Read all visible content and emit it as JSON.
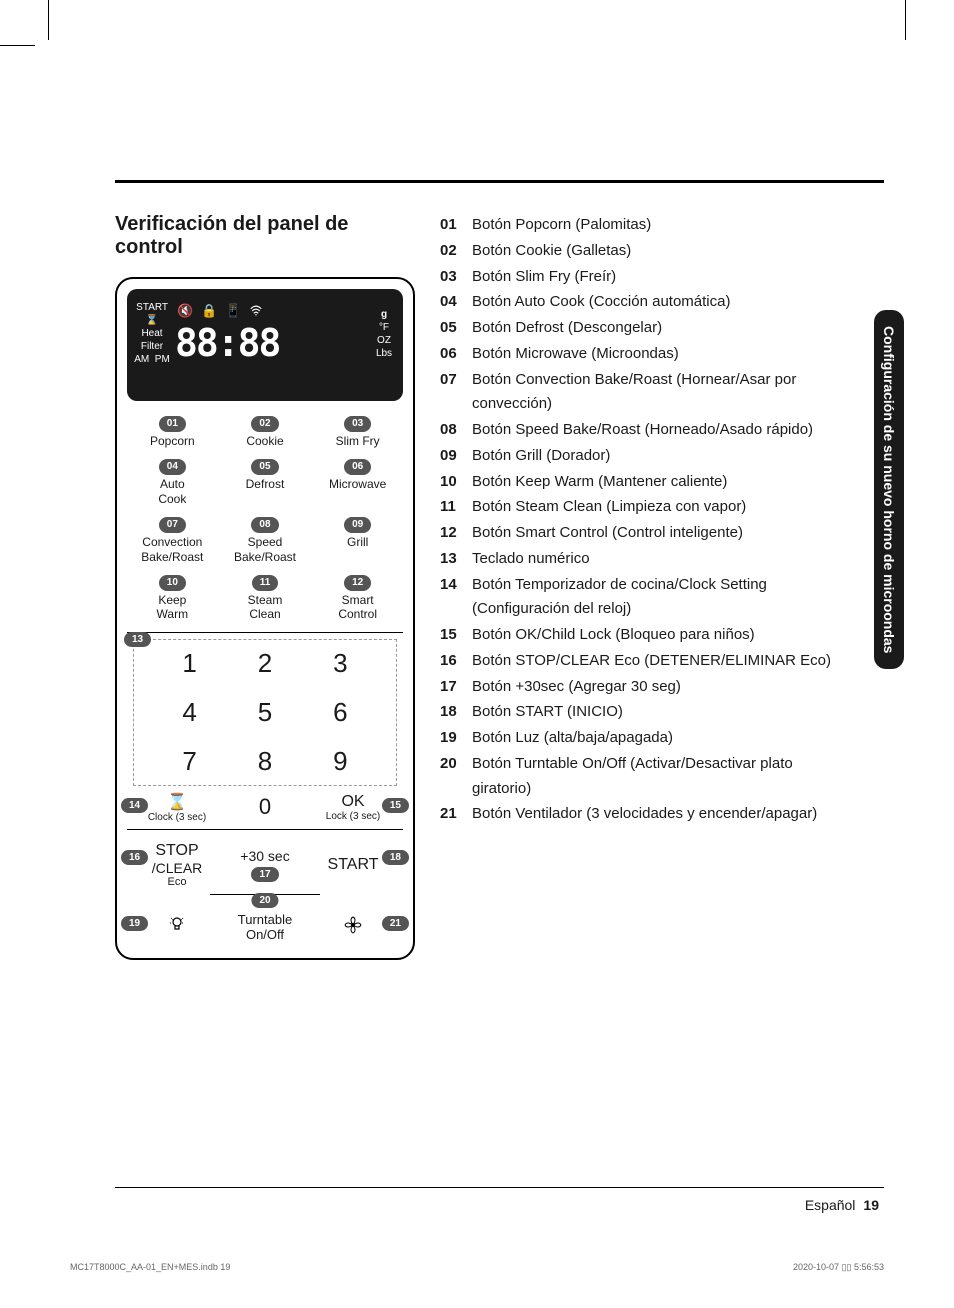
{
  "crop_marks": true,
  "section_title": "Verificación del panel de control",
  "sidebar_tab": "Configuración de su nuevo horno de microondas",
  "display": {
    "start": "START",
    "heat": "Heat",
    "filter": "Filter",
    "am": "AM",
    "pm": "PM",
    "g": "g",
    "f": "°F",
    "oz": "OZ",
    "lbs": "Lbs",
    "digits": "88:88"
  },
  "panel_buttons": [
    {
      "num": "01",
      "label": "Popcorn"
    },
    {
      "num": "02",
      "label": "Cookie"
    },
    {
      "num": "03",
      "label": "Slim Fry"
    },
    {
      "num": "04",
      "label": "Auto\nCook"
    },
    {
      "num": "05",
      "label": "Defrost"
    },
    {
      "num": "06",
      "label": "Microwave"
    },
    {
      "num": "07",
      "label": "Convection\nBake/Roast"
    },
    {
      "num": "08",
      "label": "Speed\nBake/Roast"
    },
    {
      "num": "09",
      "label": "Grill"
    },
    {
      "num": "10",
      "label": "Keep\nWarm"
    },
    {
      "num": "11",
      "label": "Steam\nClean"
    },
    {
      "num": "12",
      "label": "Smart\nControl"
    }
  ],
  "keypad": {
    "callout": "13",
    "keys": [
      "1",
      "2",
      "3",
      "4",
      "5",
      "6",
      "7",
      "8",
      "9"
    ]
  },
  "zero_row": {
    "left_callout": "14",
    "clock_label": "Clock (3 sec)",
    "zero": "0",
    "ok": "OK",
    "lock_label": "Lock (3 sec)",
    "right_callout": "15"
  },
  "stop_start": {
    "left_callout": "16",
    "stop": "STOP",
    "stop2": "/CLEAR",
    "eco": "Eco",
    "mid": "+30 sec",
    "mid_callout": "17",
    "start": "START",
    "right_callout": "18"
  },
  "bottom": {
    "callout_mid": "20",
    "left_callout": "19",
    "turntable": "Turntable",
    "onoff": "On/Off",
    "right_callout": "21"
  },
  "legend": [
    {
      "n": "01",
      "t": "Botón Popcorn (Palomitas)"
    },
    {
      "n": "02",
      "t": "Botón Cookie (Galletas)"
    },
    {
      "n": "03",
      "t": "Botón Slim Fry (Freír)"
    },
    {
      "n": "04",
      "t": "Botón Auto Cook (Cocción automática)"
    },
    {
      "n": "05",
      "t": "Botón Defrost (Descongelar)"
    },
    {
      "n": "06",
      "t": "Botón Microwave (Microondas)"
    },
    {
      "n": "07",
      "t": "Botón Convection Bake/Roast (Hornear/Asar por convección)"
    },
    {
      "n": "08",
      "t": "Botón Speed Bake/Roast (Horneado/Asado rápido)"
    },
    {
      "n": "09",
      "t": "Botón Grill (Dorador)"
    },
    {
      "n": "10",
      "t": "Botón Keep Warm (Mantener caliente)"
    },
    {
      "n": "11",
      "t": "Botón Steam Clean (Limpieza con vapor)"
    },
    {
      "n": "12",
      "t": "Botón Smart Control (Control inteligente)"
    },
    {
      "n": "13",
      "t": "Teclado numérico"
    },
    {
      "n": "14",
      "t": "Botón Temporizador de cocina/Clock Setting (Configuración del reloj)"
    },
    {
      "n": "15",
      "t": "Botón OK/Child Lock (Bloqueo para niños)"
    },
    {
      "n": "16",
      "t": "Botón STOP/CLEAR Eco (DETENER/ELIMINAR Eco)"
    },
    {
      "n": "17",
      "t": "Botón +30sec (Agregar 30 seg)"
    },
    {
      "n": "18",
      "t": "Botón START (INICIO)"
    },
    {
      "n": "19",
      "t": "Botón Luz (alta/baja/apagada)"
    },
    {
      "n": "20",
      "t": "Botón Turntable On/Off (Activar/Desactivar plato giratorio)"
    },
    {
      "n": "21",
      "t": "Botón Ventilador (3 velocidades y encender/apagar)"
    }
  ],
  "footer": {
    "lang": "Español",
    "page": "19"
  },
  "fine_left": "MC17T8000C_AA-01_EN+MES.indb   19",
  "fine_right": "2020-10-07   ▯▯ 5:56:53"
}
